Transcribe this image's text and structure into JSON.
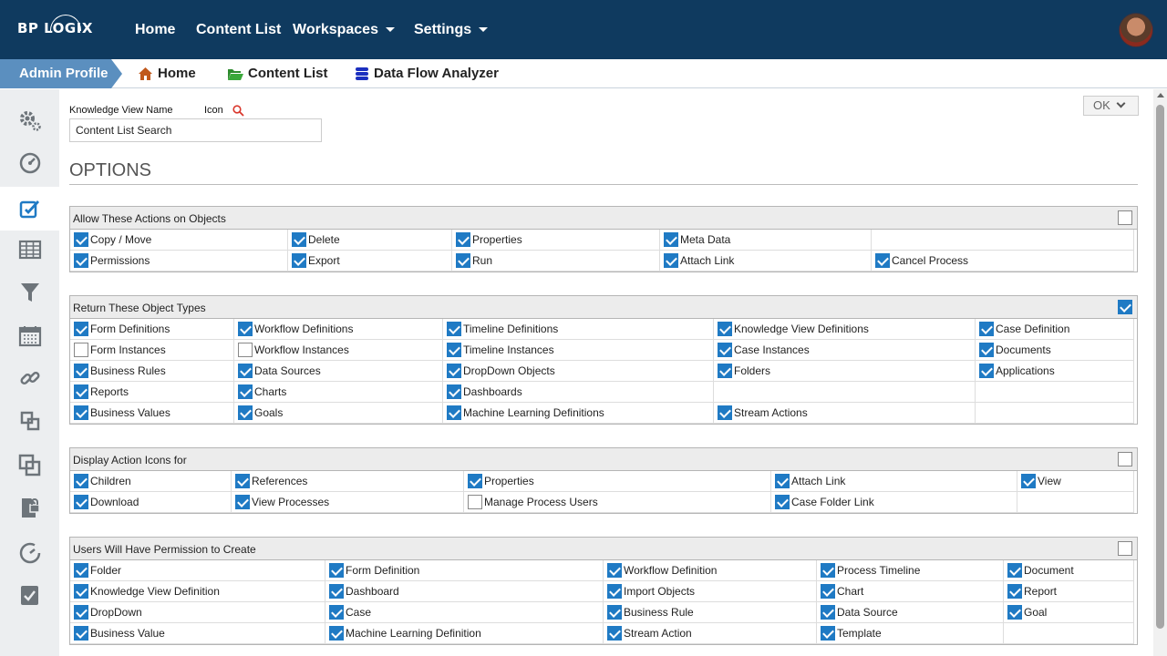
{
  "topnav": {
    "logo": "BP LOGIX",
    "links": [
      "Home",
      "Content List",
      "Workspaces",
      "Settings"
    ]
  },
  "breadcrumb": {
    "profile": "Admin Profile",
    "items": [
      "Home",
      "Content List",
      "Data Flow Analyzer"
    ]
  },
  "sidebar": {
    "icons": [
      "gears-icon",
      "dashboard-gauge-icon",
      "checkbox-edit-icon",
      "table-icon",
      "filter-icon",
      "calendar-icon",
      "link-icon",
      "copy-icon",
      "clone-icon",
      "file-lock-icon",
      "history-icon",
      "task-check-icon"
    ]
  },
  "form": {
    "kv_label": "Knowledge View Name",
    "icon_label": "Icon",
    "kv_value": "Content List Search",
    "ok_label": "OK",
    "options_title": "OPTIONS"
  },
  "sections": [
    {
      "title": "Allow These Actions on Objects",
      "header_checked": false,
      "cols": [
        4,
        243,
        423,
        651,
        883,
        1171
      ],
      "rows": [
        [
          {
            "label": "Copy / Move",
            "checked": true
          },
          {
            "label": "Delete",
            "checked": true
          },
          {
            "label": "Properties",
            "checked": true
          },
          {
            "label": "Meta Data",
            "checked": true
          },
          null
        ],
        [
          {
            "label": "Permissions",
            "checked": true
          },
          {
            "label": "Export",
            "checked": true
          },
          {
            "label": "Run",
            "checked": true
          },
          {
            "label": "Attach Link",
            "checked": true
          },
          {
            "label": "Cancel Process",
            "checked": true
          }
        ]
      ]
    },
    {
      "title": "Return These Object Types",
      "header_checked": true,
      "cols": [
        4,
        184,
        413,
        710,
        997,
        1171
      ],
      "rows": [
        [
          {
            "label": "Form Definitions",
            "checked": true
          },
          {
            "label": "Workflow Definitions",
            "checked": true
          },
          {
            "label": "Timeline Definitions",
            "checked": true
          },
          {
            "label": "Knowledge View Definitions",
            "checked": true
          },
          {
            "label": "Case Definition",
            "checked": true
          }
        ],
        [
          {
            "label": "Form Instances",
            "checked": false
          },
          {
            "label": "Workflow Instances",
            "checked": false
          },
          {
            "label": "Timeline Instances",
            "checked": true
          },
          {
            "label": "Case Instances",
            "checked": true
          },
          {
            "label": "Documents",
            "checked": true
          }
        ],
        [
          {
            "label": "Business Rules",
            "checked": true
          },
          {
            "label": "Data Sources",
            "checked": true
          },
          {
            "label": "DropDown Objects",
            "checked": true
          },
          {
            "label": "Folders",
            "checked": true
          },
          {
            "label": "Applications",
            "checked": true
          }
        ],
        [
          {
            "label": "Reports",
            "checked": true
          },
          {
            "label": "Charts",
            "checked": true
          },
          {
            "label": "Dashboards",
            "checked": true
          },
          null,
          null
        ],
        [
          {
            "label": "Business Values",
            "checked": true
          },
          {
            "label": "Goals",
            "checked": true
          },
          {
            "label": "Machine Learning Definitions",
            "checked": true
          },
          {
            "label": "Stream Actions",
            "checked": true
          },
          null
        ]
      ]
    },
    {
      "title": "Display Action Icons for",
      "header_checked": false,
      "cols": [
        4,
        181,
        436,
        773,
        1043,
        1171
      ],
      "rows": [
        [
          {
            "label": "Children",
            "checked": true
          },
          {
            "label": "References",
            "checked": true
          },
          {
            "label": "Properties",
            "checked": true
          },
          {
            "label": "Attach Link",
            "checked": true
          },
          {
            "label": "View",
            "checked": true
          }
        ],
        [
          {
            "label": "Download",
            "checked": true
          },
          {
            "label": "View Processes",
            "checked": true
          },
          {
            "label": "Manage Process Users",
            "checked": false
          },
          {
            "label": "Case Folder Link",
            "checked": true
          },
          null
        ]
      ]
    },
    {
      "title": "Users Will Have Permission to Create",
      "header_checked": false,
      "cols": [
        4,
        284,
        589,
        823,
        1028,
        1171
      ],
      "rows": [
        [
          {
            "label": "Folder",
            "checked": true
          },
          {
            "label": "Form Definition",
            "checked": true
          },
          {
            "label": "Workflow Definition",
            "checked": true
          },
          {
            "label": "Process Timeline",
            "checked": true
          },
          {
            "label": "Document",
            "checked": true
          }
        ],
        [
          {
            "label": "Knowledge View Definition",
            "checked": true
          },
          {
            "label": "Dashboard",
            "checked": true
          },
          {
            "label": "Import Objects",
            "checked": true
          },
          {
            "label": "Chart",
            "checked": true
          },
          {
            "label": "Report",
            "checked": true
          }
        ],
        [
          {
            "label": "DropDown",
            "checked": true
          },
          {
            "label": "Case",
            "checked": true
          },
          {
            "label": "Business Rule",
            "checked": true
          },
          {
            "label": "Data Source",
            "checked": true
          },
          {
            "label": "Goal",
            "checked": true
          }
        ],
        [
          {
            "label": "Business Value",
            "checked": true
          },
          {
            "label": "Machine Learning Definition",
            "checked": true
          },
          {
            "label": "Stream Action",
            "checked": true
          },
          {
            "label": "Template",
            "checked": true
          },
          null
        ]
      ]
    }
  ]
}
